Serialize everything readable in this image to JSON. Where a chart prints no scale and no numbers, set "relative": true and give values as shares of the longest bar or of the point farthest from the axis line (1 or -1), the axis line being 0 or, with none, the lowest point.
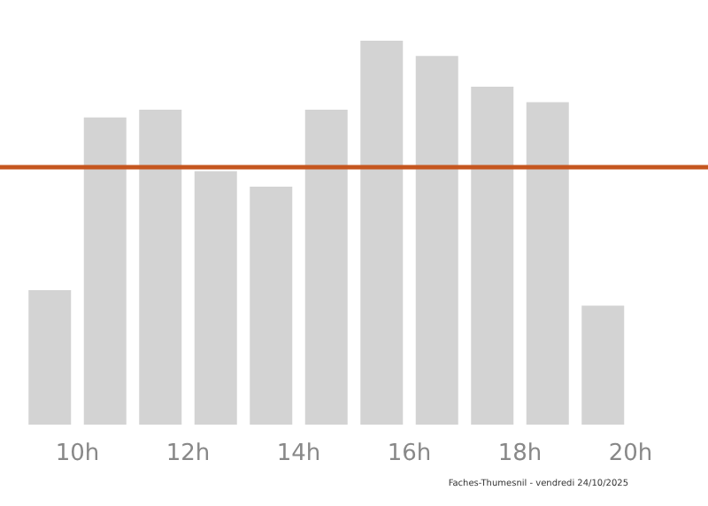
{
  "chart_data": {
    "type": "bar",
    "relative": true,
    "x": [
      9.5,
      10.5,
      11.5,
      12.5,
      13.5,
      14.5,
      15.5,
      16.5,
      17.5,
      18.5,
      19.5
    ],
    "values": [
      0.35,
      0.8,
      0.82,
      0.66,
      0.62,
      0.82,
      1,
      0.96,
      0.88,
      0.84,
      0.31
    ],
    "color": "#d3d3d3",
    "xlim": [
      8.6,
      21.4
    ],
    "xticks": [
      {
        "value": 10,
        "label": "10h"
      },
      {
        "value": 12,
        "label": "12h"
      },
      {
        "value": 14,
        "label": "14h"
      },
      {
        "value": 16,
        "label": "16h"
      },
      {
        "value": 18,
        "label": "18h"
      },
      {
        "value": 20,
        "label": "20h"
      }
    ],
    "ref_lines": [
      {
        "axis": "y",
        "value": 0.67,
        "label": null,
        "color": "#c5561f"
      }
    ],
    "annotations": [
      "Faches-Thumesnil - vendredi 24/10/2025"
    ],
    "grid": false
  }
}
